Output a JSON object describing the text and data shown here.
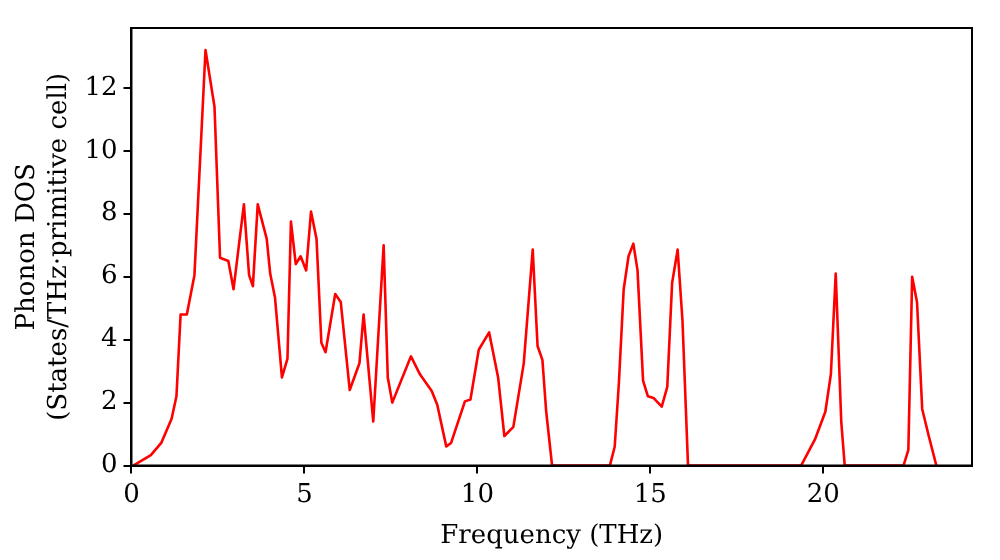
{
  "chart_data": {
    "type": "line",
    "xlabel": "Frequency (THz)",
    "ylabel": "Phonon DOS\n(States/THz·primitive cell)",
    "xlim": [
      0,
      24.3
    ],
    "ylim": [
      0,
      13.9
    ],
    "xticks": [
      0,
      5,
      10,
      15,
      20
    ],
    "yticks": [
      0,
      2,
      4,
      6,
      8,
      10,
      12
    ],
    "grid": false,
    "legend": false,
    "marker": "none",
    "line_style": "solid",
    "series": [
      {
        "color": "#ff0000",
        "x": [
          0.05,
          0.56,
          0.86,
          1.16,
          1.3,
          1.42,
          1.6,
          1.82,
          2.14,
          2.4,
          2.56,
          2.8,
          2.95,
          3.25,
          3.4,
          3.51,
          3.65,
          3.91,
          4.01,
          4.15,
          4.35,
          4.51,
          4.61,
          4.75,
          4.89,
          5.05,
          5.19,
          5.35,
          5.49,
          5.61,
          5.89,
          6.05,
          6.31,
          6.59,
          6.71,
          6.99,
          7.29,
          7.41,
          7.54,
          8.08,
          8.34,
          8.68,
          8.84,
          9.1,
          9.24,
          9.64,
          9.8,
          10.04,
          10.34,
          10.6,
          10.78,
          11.04,
          11.34,
          11.6,
          11.74,
          11.88,
          11.99,
          12.16,
          13.83,
          13.97,
          14.09,
          14.23,
          14.37,
          14.51,
          14.63,
          14.79,
          14.93,
          15.09,
          15.33,
          15.49,
          15.63,
          15.79,
          15.93,
          16.09,
          19.36,
          19.76,
          20.06,
          20.22,
          20.36,
          20.52,
          20.62,
          22.32,
          22.46,
          22.57,
          22.71,
          22.86,
          23.05,
          23.27
        ],
        "values": [
          0,
          0.33,
          0.72,
          1.49,
          2.2,
          4.8,
          4.8,
          6.05,
          13.2,
          11.4,
          6.6,
          6.5,
          5.6,
          8.3,
          6.05,
          5.7,
          8.3,
          7.2,
          6.1,
          5.33,
          2.8,
          3.4,
          7.75,
          6.4,
          6.65,
          6.2,
          8.07,
          7.2,
          3.9,
          3.6,
          5.45,
          5.2,
          2.4,
          3.25,
          4.8,
          1.4,
          7.0,
          2.8,
          2.0,
          3.47,
          2.9,
          2.37,
          1.93,
          0.61,
          0.72,
          2.04,
          2.1,
          3.68,
          4.23,
          2.8,
          0.94,
          1.23,
          3.24,
          6.86,
          3.8,
          3.36,
          1.71,
          0,
          0,
          0.6,
          2.6,
          5.6,
          6.65,
          7.05,
          6.2,
          2.7,
          2.2,
          2.15,
          1.87,
          2.5,
          5.8,
          6.86,
          4.6,
          0,
          0,
          0.83,
          1.71,
          2.9,
          6.1,
          1.4,
          0,
          0,
          0.5,
          6.0,
          5.2,
          1.8,
          0.94,
          0
        ]
      }
    ]
  }
}
